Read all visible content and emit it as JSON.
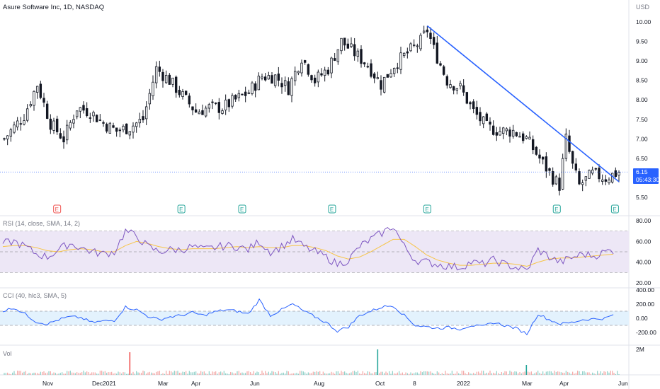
{
  "header": {
    "title": "Asure Software Inc, 1D, NASDAQ",
    "currency": "USD"
  },
  "price_label": {
    "value": "6.15",
    "countdown": "05:43:30"
  },
  "colors": {
    "up": "#26a69a",
    "down": "#ef5350",
    "candle": "#131722",
    "trendline": "#2962ff",
    "rsi_line": "#7e57c2",
    "rsi_ma": "#f7c548",
    "rsi_band": "#ede7f6",
    "cci_line": "#2962ff",
    "cci_band": "#e3f2fd",
    "grid": "#f0f3fa"
  },
  "chart_data": [
    {
      "type": "line",
      "subtype": "candlestick",
      "title": "Asure Software Inc, 1D, NASDAQ",
      "ylabel": "USD",
      "ylim": [
        5.3,
        10.2
      ],
      "y_ticks": [
        "10.00",
        "9.50",
        "9.00",
        "8.50",
        "8.00",
        "7.50",
        "7.00",
        "6.50",
        "6.15",
        "5.50"
      ],
      "x_ticks": [
        "Nov",
        "Dec",
        "2021",
        "Mar",
        "Apr",
        "Jun",
        "Aug",
        "Oct",
        "8",
        "2022",
        "Mar",
        "Apr",
        "Jun"
      ],
      "earnings_markers": [
        "E",
        "E",
        "E",
        "E",
        "E",
        "E",
        "E"
      ],
      "close_series": [
        [
          0,
          7.0
        ],
        [
          6,
          7.6
        ],
        [
          10,
          8.4
        ],
        [
          14,
          7.4
        ],
        [
          18,
          7.0
        ],
        [
          22,
          7.8
        ],
        [
          26,
          7.7
        ],
        [
          30,
          7.4
        ],
        [
          34,
          7.2
        ],
        [
          38,
          7.3
        ],
        [
          42,
          7.5
        ],
        [
          46,
          8.8
        ],
        [
          50,
          8.5
        ],
        [
          54,
          8.1
        ],
        [
          58,
          7.7
        ],
        [
          62,
          7.8
        ],
        [
          66,
          7.8
        ],
        [
          70,
          8.0
        ],
        [
          74,
          8.2
        ],
        [
          78,
          8.6
        ],
        [
          82,
          8.6
        ],
        [
          86,
          8.3
        ],
        [
          90,
          9.1
        ],
        [
          94,
          8.5
        ],
        [
          98,
          8.8
        ],
        [
          102,
          9.5
        ],
        [
          106,
          9.2
        ],
        [
          110,
          8.9
        ],
        [
          114,
          8.4
        ],
        [
          118,
          8.9
        ],
        [
          122,
          9.2
        ],
        [
          126,
          9.5
        ],
        [
          128,
          9.8
        ],
        [
          130,
          9.3
        ],
        [
          134,
          8.5
        ],
        [
          138,
          8.3
        ],
        [
          142,
          7.7
        ],
        [
          146,
          7.3
        ],
        [
          150,
          7.2
        ],
        [
          154,
          7.2
        ],
        [
          158,
          7.0
        ],
        [
          162,
          6.5
        ],
        [
          166,
          6.0
        ],
        [
          168,
          5.8
        ],
        [
          170,
          7.0
        ],
        [
          172,
          6.3
        ],
        [
          174,
          5.8
        ],
        [
          178,
          6.1
        ],
        [
          182,
          6.0
        ],
        [
          186,
          6.15
        ]
      ],
      "trendline": {
        "from": [
          128,
          9.9
        ],
        "to": [
          186,
          5.9
        ]
      },
      "last_price": 6.15
    },
    {
      "type": "line",
      "title": "RSI (14, close, SMA, 14, 2)",
      "ylim": [
        20,
        80
      ],
      "y_ticks": [
        "80.00",
        "60.00",
        "40.00",
        "20.00"
      ],
      "bands": [
        30,
        50,
        70
      ],
      "rsi": [
        58,
        60,
        55,
        48,
        45,
        52,
        58,
        54,
        50,
        48,
        50,
        70,
        65,
        55,
        50,
        52,
        52,
        55,
        52,
        54,
        56,
        55,
        52,
        60,
        50,
        55,
        62,
        55,
        50,
        45,
        38,
        42,
        55,
        62,
        68,
        75,
        55,
        42,
        40,
        38,
        36,
        35,
        40,
        38,
        42,
        38,
        35,
        32,
        52,
        45,
        40,
        44,
        48,
        46,
        50,
        52
      ],
      "rsi_ma": [
        55,
        56,
        56,
        54,
        51,
        50,
        52,
        53,
        52,
        50,
        50,
        56,
        60,
        58,
        55,
        53,
        52,
        53,
        53,
        53,
        54,
        55,
        54,
        55,
        54,
        54,
        56,
        56,
        54,
        51,
        46,
        43,
        45,
        50,
        56,
        62,
        62,
        55,
        47,
        42,
        39,
        37,
        37,
        38,
        39,
        39,
        38,
        36,
        40,
        43,
        44,
        44,
        45,
        46,
        47,
        48
      ]
    },
    {
      "type": "line",
      "title": "CCI (40, hlc3, SMA, 5)",
      "ylim": [
        -350,
        420
      ],
      "y_ticks": [
        "400.00",
        "200.00",
        "0.00",
        "-200.00"
      ],
      "bands": [
        -100,
        100
      ],
      "cci": [
        100,
        150,
        60,
        -50,
        -80,
        -20,
        20,
        10,
        -60,
        -40,
        -30,
        160,
        120,
        30,
        -20,
        20,
        40,
        80,
        40,
        90,
        120,
        100,
        60,
        260,
        40,
        120,
        200,
        100,
        20,
        -60,
        -180,
        -120,
        40,
        100,
        160,
        180,
        40,
        -100,
        -120,
        -140,
        -130,
        -150,
        -100,
        -120,
        -60,
        -100,
        -140,
        -220,
        60,
        -20,
        -80,
        -60,
        -20,
        -10,
        0,
        60
      ]
    },
    {
      "type": "bar",
      "title": "Vol",
      "y_ticks": [
        "2M"
      ],
      "spikes": [
        {
          "x": 38,
          "color": "red"
        },
        {
          "x": 113,
          "color": "green"
        },
        {
          "x": 158,
          "color": "green"
        }
      ]
    }
  ]
}
